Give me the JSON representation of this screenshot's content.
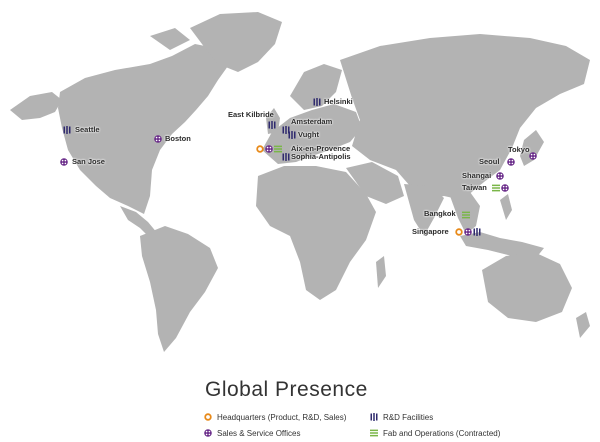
{
  "title": "Global Presence",
  "colors": {
    "land": "#b3b3b3",
    "headquarters": "#e88a1a",
    "sales": "#6a2c8a",
    "rnd": "#2f2a6e",
    "fab": "#7ab648"
  },
  "legend": [
    {
      "type": "headquarters",
      "label": "Headquarters (Product, R&D, Sales)"
    },
    {
      "type": "rnd",
      "label": "R&D Facilities"
    },
    {
      "type": "sales",
      "label": "Sales & Service Offices"
    },
    {
      "type": "fab",
      "label": "Fab and Operations (Contracted)"
    }
  ],
  "locations": [
    {
      "name": "Seattle",
      "types": [
        "rnd"
      ]
    },
    {
      "name": "San Jose",
      "types": [
        "sales"
      ]
    },
    {
      "name": "Boston",
      "types": [
        "sales"
      ]
    },
    {
      "name": "East Kilbride",
      "types": [
        "rnd"
      ]
    },
    {
      "name": "Helsinki",
      "types": [
        "rnd"
      ]
    },
    {
      "name": "Amsterdam",
      "types": [
        "rnd"
      ]
    },
    {
      "name": "Vught",
      "types": [
        "rnd"
      ]
    },
    {
      "name": "Aix-en-Provence",
      "types": [
        "headquarters",
        "sales",
        "fab"
      ]
    },
    {
      "name": "Sophia-Antipolis",
      "types": [
        "rnd"
      ]
    },
    {
      "name": "Tokyo",
      "types": [
        "sales"
      ]
    },
    {
      "name": "Seoul",
      "types": [
        "sales"
      ]
    },
    {
      "name": "Shangai",
      "types": [
        "sales"
      ]
    },
    {
      "name": "Taiwan",
      "types": [
        "fab",
        "sales"
      ]
    },
    {
      "name": "Bangkok",
      "types": [
        "fab"
      ]
    },
    {
      "name": "Singapore",
      "types": [
        "headquarters",
        "sales",
        "rnd"
      ]
    }
  ]
}
